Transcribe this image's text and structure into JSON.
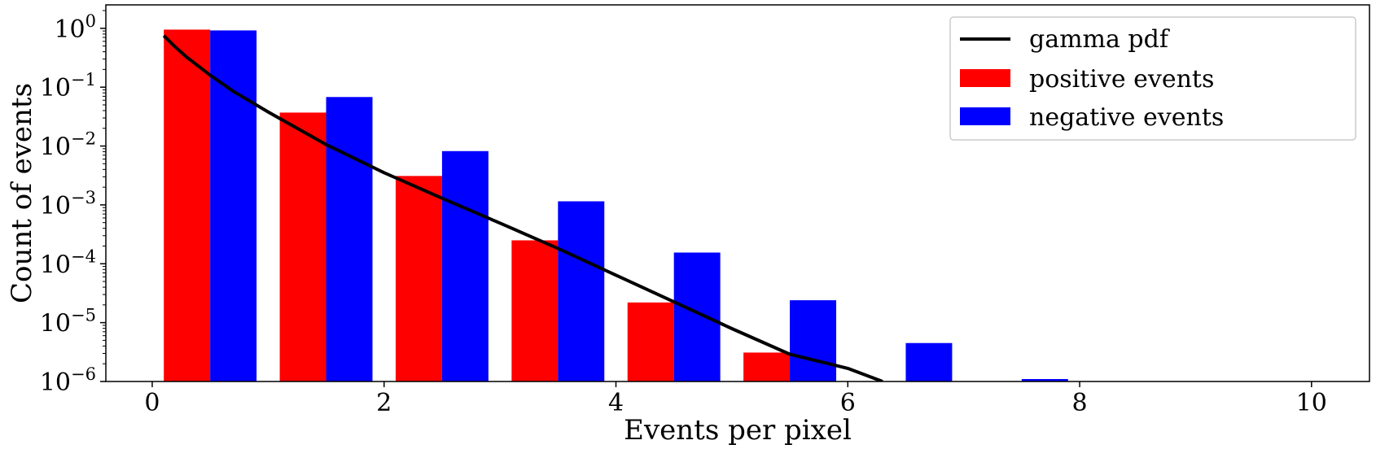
{
  "chart_data": {
    "type": "bar",
    "title": "",
    "xlabel": "Events per pixel",
    "ylabel": "Count of events",
    "xlim": [
      -0.4,
      10.5
    ],
    "ylim": [
      1e-06,
      2.5
    ],
    "yscale": "log",
    "x_ticks": [
      0,
      2,
      4,
      6,
      8,
      10
    ],
    "y_ticks": [
      {
        "exp": "0",
        "value": 1
      },
      {
        "exp": "−1",
        "value": 0.1
      },
      {
        "exp": "−2",
        "value": 0.01
      },
      {
        "exp": "−3",
        "value": 0.001
      },
      {
        "exp": "−4",
        "value": 0.0001
      },
      {
        "exp": "−5",
        "value": 1e-05
      },
      {
        "exp": "−6",
        "value": 1e-06
      }
    ],
    "y_tick_base": "10",
    "grid": false,
    "legend_position": "top-right",
    "bar_groups": [
      {
        "name": "positive events",
        "color": "#ff0000",
        "bins": [
          {
            "x0": 0.1,
            "x1": 0.5,
            "value": 0.95
          },
          {
            "x0": 1.1,
            "x1": 1.5,
            "value": 0.037
          },
          {
            "x0": 2.1,
            "x1": 2.5,
            "value": 0.0031
          },
          {
            "x0": 3.1,
            "x1": 3.5,
            "value": 0.00025
          },
          {
            "x0": 4.1,
            "x1": 4.5,
            "value": 2.2e-05
          },
          {
            "x0": 5.1,
            "x1": 5.5,
            "value": 3.1e-06
          }
        ]
      },
      {
        "name": "negative events",
        "color": "#0000ff",
        "bins": [
          {
            "x0": 0.5,
            "x1": 0.9,
            "value": 0.92
          },
          {
            "x0": 1.5,
            "x1": 1.9,
            "value": 0.068
          },
          {
            "x0": 2.5,
            "x1": 2.9,
            "value": 0.0082
          },
          {
            "x0": 3.5,
            "x1": 3.9,
            "value": 0.00115
          },
          {
            "x0": 4.5,
            "x1": 4.9,
            "value": 0.000155
          },
          {
            "x0": 5.5,
            "x1": 5.9,
            "value": 2.4e-05
          },
          {
            "x0": 6.5,
            "x1": 6.9,
            "value": 4.5e-06
          },
          {
            "x0": 7.5,
            "x1": 7.9,
            "value": 1.1e-06
          }
        ]
      }
    ],
    "lines": [
      {
        "name": "gamma pdf",
        "color": "#000000",
        "x": [
          0.1,
          0.2,
          0.3,
          0.5,
          0.7,
          1.0,
          1.5,
          2.0,
          2.5,
          3.0,
          3.5,
          4.0,
          4.5,
          5.0,
          5.5,
          6.0,
          6.3
        ],
        "y": [
          0.75,
          0.48,
          0.32,
          0.16,
          0.085,
          0.038,
          0.0106,
          0.00353,
          0.0013,
          0.00049,
          0.000182,
          6.4e-05,
          2.25e-05,
          7.9e-06,
          2.9e-06,
          1.67e-06,
          1e-06
        ]
      }
    ],
    "legend": [
      "gamma pdf",
      "positive events",
      "negative events"
    ]
  }
}
